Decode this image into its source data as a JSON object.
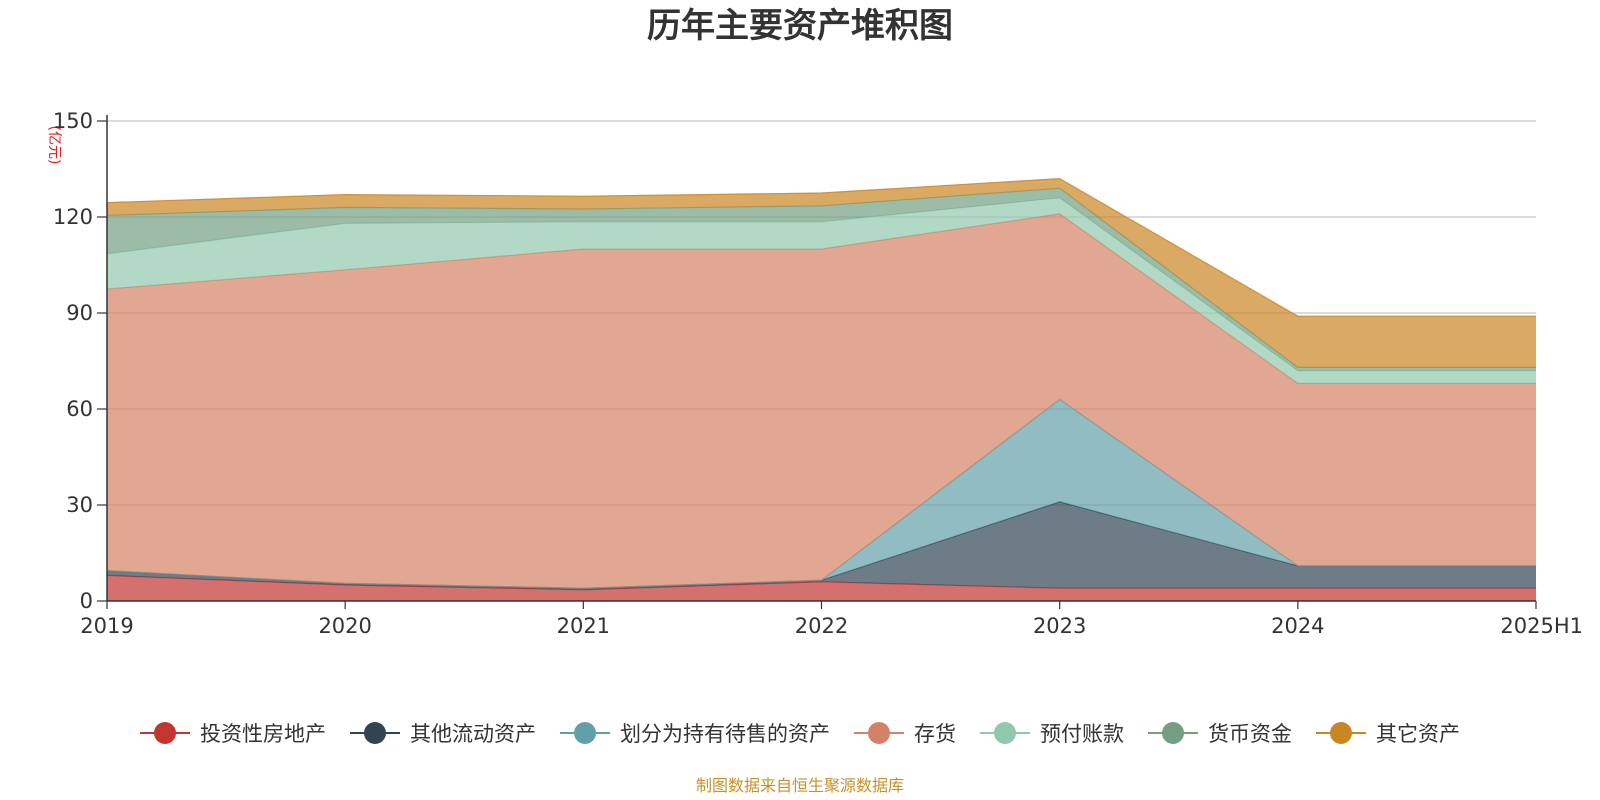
{
  "chart_data": {
    "type": "area",
    "stacked": true,
    "title": "历年主要资产堆积图",
    "unit_label": "(亿元)",
    "x": [
      "2019",
      "2020",
      "2021",
      "2022",
      "2023",
      "2024",
      "2025H1"
    ],
    "ylim": [
      0,
      150
    ],
    "yticks": [
      0,
      30,
      60,
      90,
      120,
      150
    ],
    "grid": true,
    "legend_position": "bottom",
    "source": "制图数据来自恒生聚源数据库",
    "series": [
      {
        "name": "投资性房地产",
        "color": "#c23531",
        "values": [
          8,
          5,
          3.5,
          6,
          4,
          4,
          4
        ]
      },
      {
        "name": "其他流动资产",
        "color": "#2f4554",
        "values": [
          1.5,
          0.5,
          0.5,
          0.5,
          27,
          7,
          7
        ]
      },
      {
        "name": "划分为持有待售的资产",
        "color": "#61a0a8",
        "values": [
          0,
          0,
          0,
          0,
          32,
          0,
          0
        ]
      },
      {
        "name": "存货",
        "color": "#d48265",
        "values": [
          88,
          98,
          106,
          103.5,
          58,
          57,
          57
        ]
      },
      {
        "name": "预付账款",
        "color": "#91c7ae",
        "values": [
          11,
          14.5,
          8.5,
          8.5,
          5,
          4,
          4
        ]
      },
      {
        "name": "货币资金",
        "color": "#749f83",
        "values": [
          12,
          5,
          4,
          5,
          3,
          1,
          1
        ]
      },
      {
        "name": "其它资产",
        "color": "#ca8622",
        "values": [
          4,
          4,
          4,
          4,
          3,
          16,
          16
        ]
      }
    ]
  }
}
